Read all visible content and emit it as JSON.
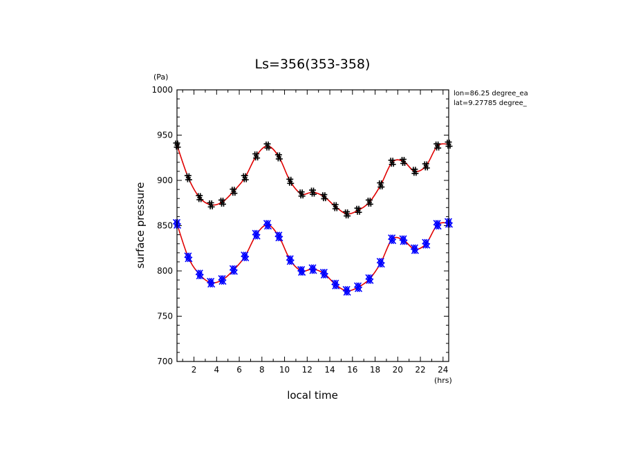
{
  "chart_data": {
    "type": "line",
    "title": "Ls=356(353-358)",
    "xlabel": "local time",
    "ylabel": "surface pressure",
    "x_unit": "(hrs)",
    "y_unit": "(Pa)",
    "xlim": [
      0.5,
      24.5
    ],
    "ylim": [
      700,
      1000
    ],
    "x_ticks": [
      "2",
      "4",
      "6",
      "8",
      "10",
      "12",
      "14",
      "16",
      "18",
      "20",
      "22",
      "24"
    ],
    "y_ticks": [
      "700",
      "750",
      "800",
      "850",
      "900",
      "950",
      "1000"
    ],
    "annotations": [
      "lon=86.25 degree_ea",
      "lat=9.27785 degree_"
    ],
    "x": [
      0.5,
      1.5,
      2.5,
      3.5,
      4.5,
      5.5,
      6.5,
      7.5,
      8.5,
      9.5,
      10.5,
      11.5,
      12.5,
      13.5,
      14.5,
      15.5,
      16.5,
      17.5,
      18.5,
      19.5,
      20.5,
      21.5,
      22.5,
      23.5,
      24.5
    ],
    "series": [
      {
        "marker": "plus",
        "marker_color": "#000000",
        "line_color": "#e00000",
        "values": [
          939,
          903,
          881,
          873,
          876,
          888,
          903,
          927,
          938,
          926,
          899,
          885,
          887,
          882,
          871,
          863,
          867,
          876,
          895,
          920,
          921,
          910,
          916,
          938,
          940
        ]
      },
      {
        "marker": "cross",
        "marker_color": "#0000ff",
        "line_color": "#e00000",
        "values": [
          852,
          815,
          796,
          787,
          790,
          801,
          816,
          840,
          851,
          838,
          812,
          800,
          802,
          797,
          785,
          778,
          782,
          791,
          809,
          835,
          834,
          824,
          830,
          851,
          853
        ]
      }
    ],
    "grid": false
  }
}
